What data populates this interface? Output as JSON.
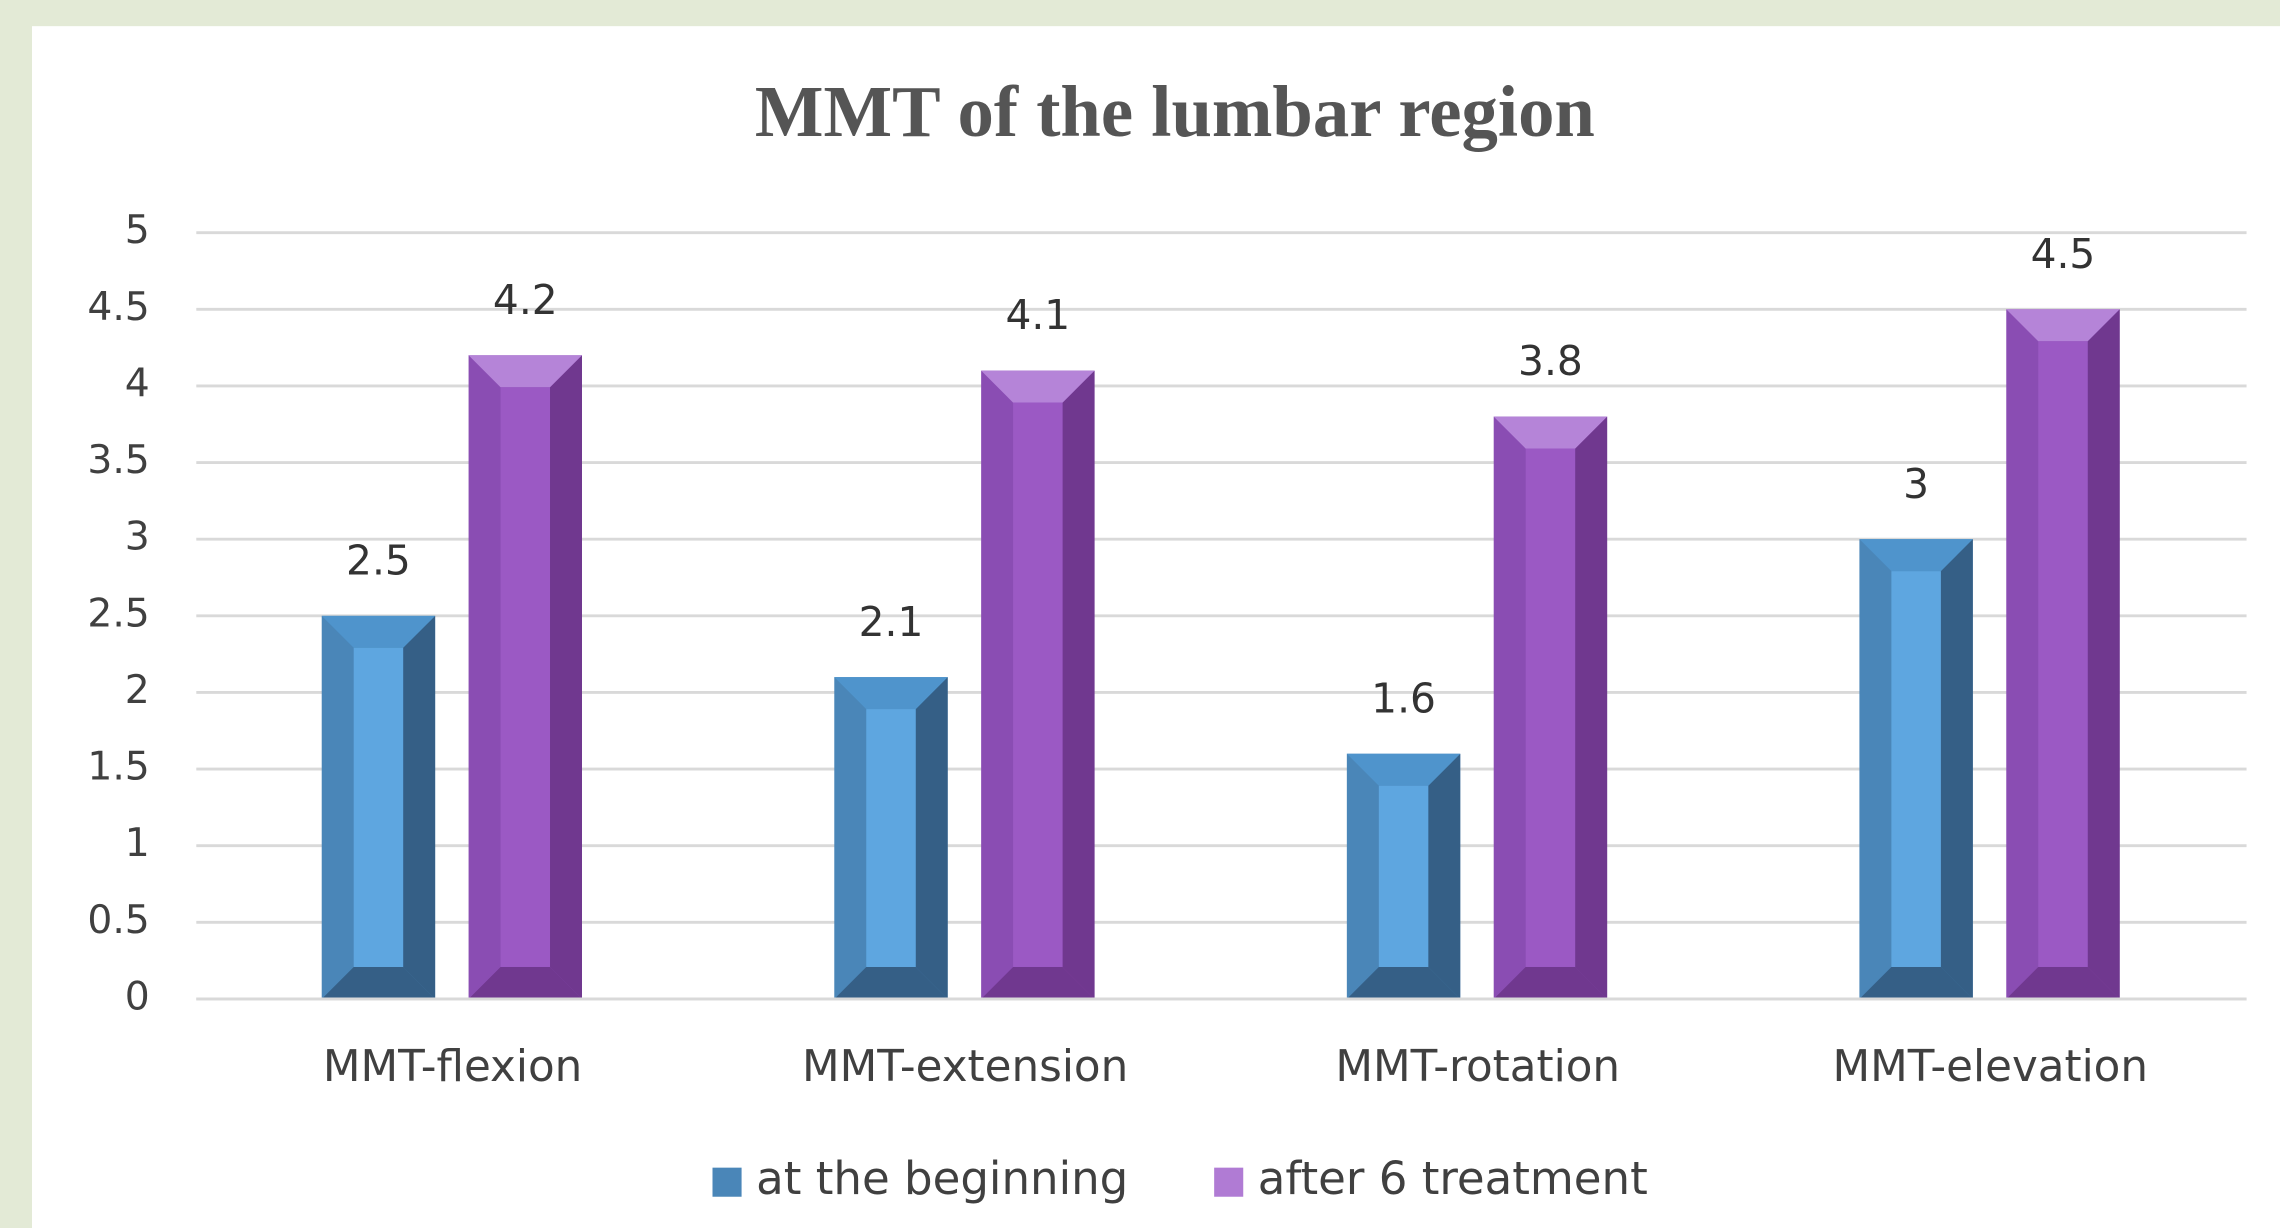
{
  "chart_data": {
    "type": "bar",
    "title": "MMT of the lumbar region",
    "categories": [
      "MMT-flexion",
      "MMT-extension",
      "MMT-rotation",
      "MMT-elevation"
    ],
    "series": [
      {
        "name": "at the beginning",
        "color": "#5ea6e0",
        "values": [
          2.5,
          2.1,
          1.6,
          3
        ]
      },
      {
        "name": "after 6 treatment",
        "color": "#9b59c4",
        "values": [
          4.2,
          4.1,
          3.8,
          4.5
        ]
      }
    ],
    "ylim": [
      0,
      5
    ],
    "yticks": [
      0,
      0.5,
      1,
      1.5,
      2,
      2.5,
      3,
      3.5,
      4,
      4.5,
      5
    ],
    "grid": true,
    "legend": "bottom"
  }
}
